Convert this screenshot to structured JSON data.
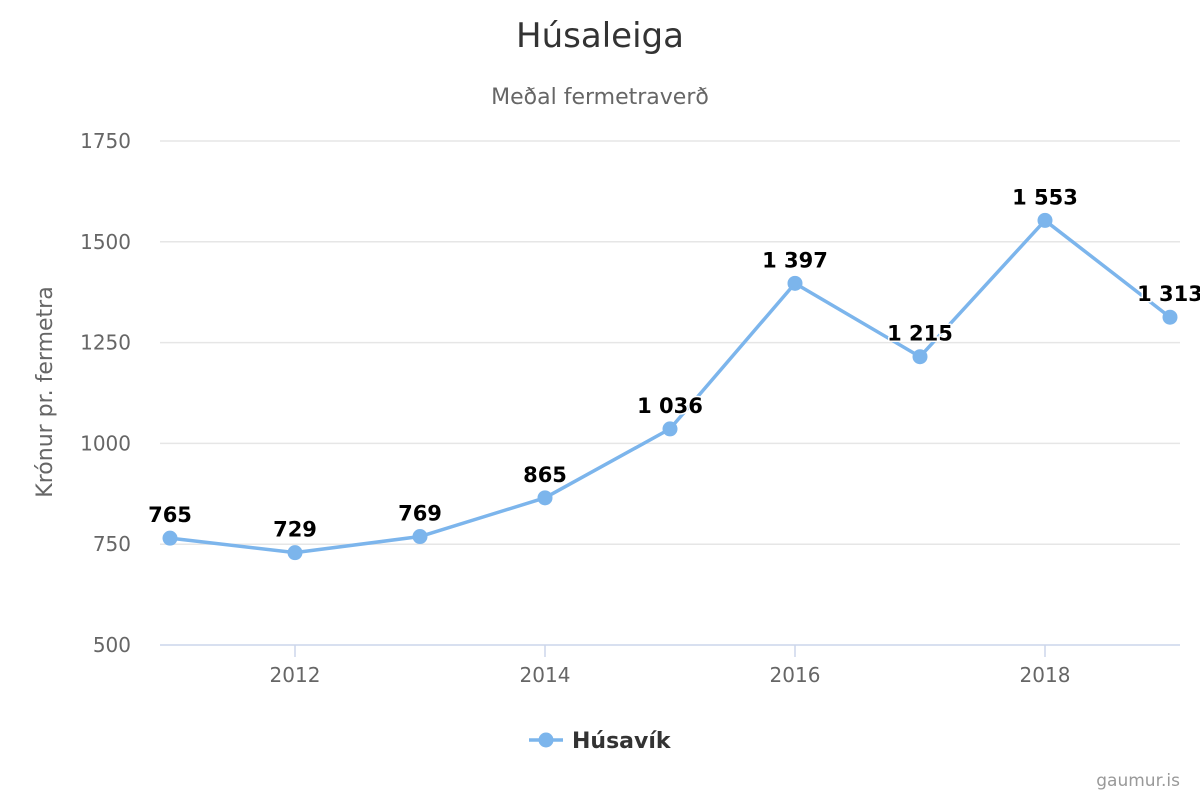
{
  "chart_data": {
    "type": "line",
    "title": "Húsaleiga",
    "subtitle": "Meðal fermetraverð",
    "ylabel": "Krónur pr. fermetra",
    "xlabel": "",
    "x": [
      2011,
      2012,
      2013,
      2014,
      2015,
      2016,
      2017,
      2018,
      2019
    ],
    "x_tick_labels": [
      "2012",
      "2014",
      "2016",
      "2018"
    ],
    "x_tick_values": [
      2012,
      2014,
      2016,
      2018
    ],
    "y_tick_labels": [
      "500",
      "750",
      "1000",
      "1250",
      "1500",
      "1750"
    ],
    "y_tick_values": [
      500,
      750,
      1000,
      1250,
      1500,
      1750
    ],
    "xlim": [
      2011,
      2019
    ],
    "ylim": [
      500,
      1750
    ],
    "grid": true,
    "legend_position": "bottom-center",
    "series": [
      {
        "name": "Húsavík",
        "color": "#7cb5ec",
        "values": [
          765,
          729,
          769,
          865,
          1036,
          1397,
          1215,
          1553,
          1313
        ],
        "data_labels": [
          "765",
          "729",
          "769",
          "865",
          "1 036",
          "1 397",
          "1 215",
          "1 553",
          "1 313"
        ]
      }
    ]
  },
  "credit": "gaumur.is"
}
